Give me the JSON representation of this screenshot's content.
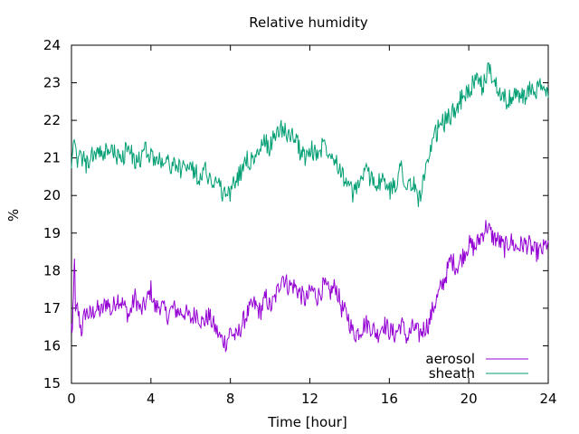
{
  "chart_data": {
    "type": "line",
    "title": "Relative humidity",
    "xlabel": "Time [hour]",
    "ylabel": "%",
    "xlim": [
      0,
      24
    ],
    "ylim": [
      15,
      24
    ],
    "xticks": [
      "0",
      "4",
      "8",
      "12",
      "16",
      "20",
      "24"
    ],
    "yticks": [
      "15",
      "16",
      "17",
      "18",
      "19",
      "20",
      "21",
      "22",
      "23",
      "24"
    ],
    "grid": false,
    "legend": "bottom-right",
    "series": [
      {
        "name": "aerosol",
        "color": "#9400d3",
        "points": [
          [
            0.0,
            16.5
          ],
          [
            0.05,
            16.4
          ],
          [
            0.1,
            17.2
          ],
          [
            0.15,
            18.5
          ],
          [
            0.2,
            16.8
          ],
          [
            0.3,
            17.0
          ],
          [
            0.5,
            16.4
          ],
          [
            0.7,
            16.9
          ],
          [
            1.0,
            16.8
          ],
          [
            1.2,
            17.0
          ],
          [
            1.5,
            16.9
          ],
          [
            1.8,
            17.2
          ],
          [
            2.0,
            16.9
          ],
          [
            2.3,
            17.3
          ],
          [
            2.6,
            17.1
          ],
          [
            2.9,
            16.8
          ],
          [
            3.2,
            17.3
          ],
          [
            3.5,
            16.9
          ],
          [
            3.8,
            17.2
          ],
          [
            4.0,
            17.5
          ],
          [
            4.2,
            17.0
          ],
          [
            4.5,
            17.1
          ],
          [
            4.8,
            16.8
          ],
          [
            5.1,
            17.0
          ],
          [
            5.4,
            16.9
          ],
          [
            5.7,
            16.9
          ],
          [
            6.0,
            16.7
          ],
          [
            6.3,
            16.9
          ],
          [
            6.6,
            16.6
          ],
          [
            6.9,
            16.8
          ],
          [
            7.2,
            16.5
          ],
          [
            7.5,
            16.2
          ],
          [
            7.8,
            16.1
          ],
          [
            8.0,
            16.4
          ],
          [
            8.3,
            16.2
          ],
          [
            8.6,
            16.6
          ],
          [
            8.9,
            16.9
          ],
          [
            9.2,
            17.1
          ],
          [
            9.5,
            16.9
          ],
          [
            9.8,
            17.3
          ],
          [
            10.0,
            17.0
          ],
          [
            10.2,
            17.2
          ],
          [
            10.4,
            17.5
          ],
          [
            10.6,
            17.9
          ],
          [
            10.9,
            17.6
          ],
          [
            11.2,
            17.6
          ],
          [
            11.5,
            17.4
          ],
          [
            11.8,
            17.2
          ],
          [
            12.1,
            17.5
          ],
          [
            12.4,
            17.3
          ],
          [
            12.7,
            17.6
          ],
          [
            13.0,
            17.4
          ],
          [
            13.3,
            17.6
          ],
          [
            13.6,
            17.0
          ],
          [
            13.9,
            16.8
          ],
          [
            14.2,
            16.3
          ],
          [
            14.5,
            16.4
          ],
          [
            14.8,
            16.6
          ],
          [
            15.1,
            16.5
          ],
          [
            15.4,
            16.3
          ],
          [
            15.7,
            16.6
          ],
          [
            16.0,
            16.4
          ],
          [
            16.3,
            16.3
          ],
          [
            16.6,
            16.6
          ],
          [
            16.9,
            16.2
          ],
          [
            17.2,
            16.5
          ],
          [
            17.5,
            16.3
          ],
          [
            17.8,
            16.5
          ],
          [
            18.0,
            16.6
          ],
          [
            18.2,
            17.0
          ],
          [
            18.5,
            17.4
          ],
          [
            18.8,
            17.8
          ],
          [
            19.1,
            18.3
          ],
          [
            19.4,
            18.1
          ],
          [
            19.7,
            18.4
          ],
          [
            20.0,
            18.7
          ],
          [
            20.3,
            18.6
          ],
          [
            20.6,
            18.9
          ],
          [
            20.9,
            19.2
          ],
          [
            21.2,
            18.9
          ],
          [
            21.5,
            18.8
          ],
          [
            21.8,
            18.6
          ],
          [
            22.1,
            18.8
          ],
          [
            22.4,
            18.6
          ],
          [
            22.7,
            18.7
          ],
          [
            23.0,
            18.7
          ],
          [
            23.3,
            18.5
          ],
          [
            23.6,
            18.5
          ],
          [
            23.8,
            18.6
          ],
          [
            24.0,
            18.8
          ]
        ]
      },
      {
        "name": "sheath",
        "color": "#009e73",
        "points": [
          [
            0.0,
            21.0
          ],
          [
            0.1,
            21.3
          ],
          [
            0.3,
            20.9
          ],
          [
            0.5,
            21.1
          ],
          [
            0.7,
            20.8
          ],
          [
            1.0,
            21.0
          ],
          [
            1.3,
            21.2
          ],
          [
            1.6,
            21.0
          ],
          [
            1.9,
            21.3
          ],
          [
            2.2,
            21.1
          ],
          [
            2.5,
            20.9
          ],
          [
            2.8,
            21.3
          ],
          [
            3.1,
            21.0
          ],
          [
            3.4,
            20.9
          ],
          [
            3.7,
            21.2
          ],
          [
            4.0,
            21.1
          ],
          [
            4.3,
            20.9
          ],
          [
            4.6,
            21.0
          ],
          [
            4.9,
            20.8
          ],
          [
            5.2,
            20.9
          ],
          [
            5.5,
            20.6
          ],
          [
            5.8,
            20.9
          ],
          [
            6.1,
            20.7
          ],
          [
            6.4,
            20.5
          ],
          [
            6.7,
            20.7
          ],
          [
            7.0,
            20.4
          ],
          [
            7.3,
            20.4
          ],
          [
            7.6,
            20.1
          ],
          [
            7.9,
            20.0
          ],
          [
            8.2,
            20.3
          ],
          [
            8.5,
            20.6
          ],
          [
            8.8,
            21.0
          ],
          [
            9.1,
            20.9
          ],
          [
            9.4,
            21.1
          ],
          [
            9.7,
            21.4
          ],
          [
            10.0,
            21.3
          ],
          [
            10.3,
            21.7
          ],
          [
            10.6,
            21.8
          ],
          [
            10.9,
            21.6
          ],
          [
            11.2,
            21.6
          ],
          [
            11.5,
            21.2
          ],
          [
            11.8,
            21.0
          ],
          [
            12.1,
            21.2
          ],
          [
            12.4,
            21.1
          ],
          [
            12.7,
            21.4
          ],
          [
            13.0,
            21.2
          ],
          [
            13.3,
            21.0
          ],
          [
            13.6,
            20.6
          ],
          [
            13.9,
            20.3
          ],
          [
            14.2,
            20.0
          ],
          [
            14.5,
            20.4
          ],
          [
            14.8,
            20.6
          ],
          [
            15.1,
            20.5
          ],
          [
            15.4,
            20.3
          ],
          [
            15.7,
            20.4
          ],
          [
            16.0,
            20.1
          ],
          [
            16.3,
            20.3
          ],
          [
            16.6,
            20.8
          ],
          [
            16.9,
            20.2
          ],
          [
            17.2,
            20.3
          ],
          [
            17.5,
            19.9
          ],
          [
            17.8,
            20.6
          ],
          [
            18.0,
            20.9
          ],
          [
            18.3,
            21.6
          ],
          [
            18.6,
            21.9
          ],
          [
            18.9,
            22.0
          ],
          [
            19.2,
            22.2
          ],
          [
            19.5,
            22.5
          ],
          [
            19.8,
            22.6
          ],
          [
            20.1,
            22.9
          ],
          [
            20.4,
            23.0
          ],
          [
            20.7,
            22.9
          ],
          [
            21.0,
            23.4
          ],
          [
            21.3,
            23.0
          ],
          [
            21.6,
            22.8
          ],
          [
            21.9,
            22.5
          ],
          [
            22.2,
            22.6
          ],
          [
            22.5,
            22.7
          ],
          [
            22.8,
            22.6
          ],
          [
            23.1,
            22.8
          ],
          [
            23.4,
            22.8
          ],
          [
            23.7,
            22.9
          ],
          [
            24.0,
            22.6
          ]
        ]
      }
    ]
  }
}
